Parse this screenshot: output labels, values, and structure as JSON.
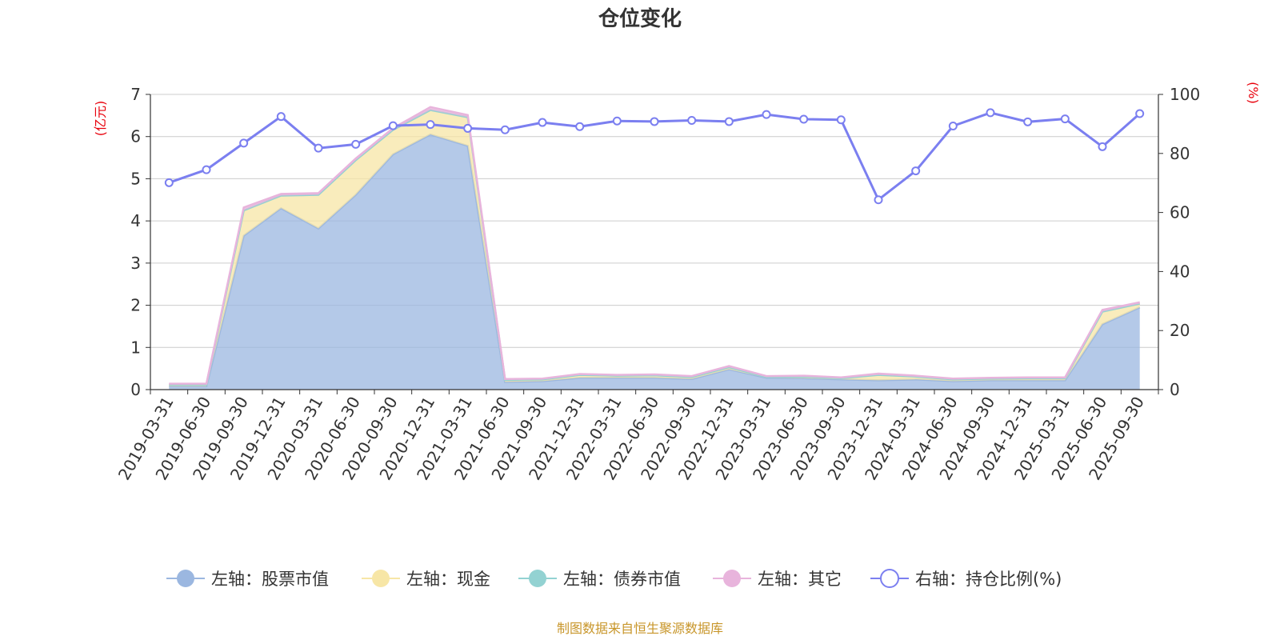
{
  "chart_data": {
    "type": "area",
    "title": "仓位变化",
    "left_axis_unit": "(亿元)",
    "right_axis_unit": "(%)",
    "source": "制图数据来自恒生聚源数据库",
    "categories": [
      "2019-03-31",
      "2019-06-30",
      "2019-09-30",
      "2019-12-31",
      "2020-03-31",
      "2020-06-30",
      "2020-09-30",
      "2020-12-31",
      "2021-03-31",
      "2021-06-30",
      "2021-09-30",
      "2021-12-31",
      "2022-03-31",
      "2022-06-30",
      "2022-09-30",
      "2022-12-31",
      "2023-03-31",
      "2023-06-30",
      "2023-09-30",
      "2023-12-31",
      "2024-03-31",
      "2024-06-30",
      "2024-09-30",
      "2024-12-31",
      "2025-03-31",
      "2025-06-30",
      "2025-09-30"
    ],
    "y_left": {
      "min": 0,
      "max": 7,
      "ticks": [
        0,
        1,
        2,
        3,
        4,
        5,
        6,
        7
      ]
    },
    "y_right": {
      "min": 0,
      "max": 100,
      "ticks": [
        0,
        20,
        40,
        60,
        80,
        100
      ]
    },
    "grid": true,
    "legend_position": "bottom",
    "series": [
      {
        "name": "左轴：股票市值",
        "axis": "left",
        "stacked": true,
        "color": "#9bb7e0",
        "values": [
          0.08,
          0.08,
          3.65,
          4.3,
          3.82,
          4.62,
          5.58,
          6.05,
          5.78,
          0.18,
          0.2,
          0.28,
          0.28,
          0.28,
          0.25,
          0.48,
          0.28,
          0.27,
          0.24,
          0.22,
          0.24,
          0.2,
          0.22,
          0.22,
          0.22,
          1.55,
          1.95
        ]
      },
      {
        "name": "左轴：现金",
        "axis": "left",
        "stacked": true,
        "color": "#f7e6a6",
        "values": [
          0.04,
          0.04,
          0.6,
          0.3,
          0.8,
          0.82,
          0.58,
          0.58,
          0.68,
          0.05,
          0.04,
          0.07,
          0.05,
          0.06,
          0.05,
          0.05,
          0.02,
          0.04,
          0.03,
          0.13,
          0.07,
          0.04,
          0.04,
          0.05,
          0.05,
          0.3,
          0.09
        ]
      },
      {
        "name": "左轴：债券市值",
        "axis": "left",
        "stacked": true,
        "color": "#93d2d2",
        "values": [
          0,
          0,
          0,
          0,
          0,
          0,
          0,
          0,
          0,
          0,
          0,
          0,
          0,
          0,
          0,
          0,
          0,
          0,
          0,
          0,
          0,
          0,
          0,
          0,
          0,
          0,
          0
        ]
      },
      {
        "name": "左轴：其它",
        "axis": "left",
        "stacked": true,
        "color": "#e8b4dc",
        "values": [
          0.02,
          0.02,
          0.07,
          0.04,
          0.04,
          0.04,
          0.04,
          0.07,
          0.05,
          0.02,
          0.02,
          0.02,
          0.02,
          0.02,
          0.02,
          0.03,
          0.02,
          0.02,
          0.02,
          0.03,
          0.02,
          0.02,
          0.02,
          0.02,
          0.02,
          0.04,
          0.03
        ]
      },
      {
        "name": "右轴：持仓比例(%)",
        "axis": "right",
        "type": "line",
        "color": "#7b7ff0",
        "values": [
          70.1,
          74.5,
          83.5,
          92.5,
          81.8,
          83.1,
          89.4,
          89.8,
          88.5,
          88.0,
          90.5,
          89.1,
          91.0,
          90.8,
          91.2,
          90.8,
          93.2,
          91.6,
          91.4,
          64.3,
          74.1,
          89.3,
          93.8,
          90.7,
          91.7,
          82.3,
          93.5
        ]
      }
    ]
  }
}
